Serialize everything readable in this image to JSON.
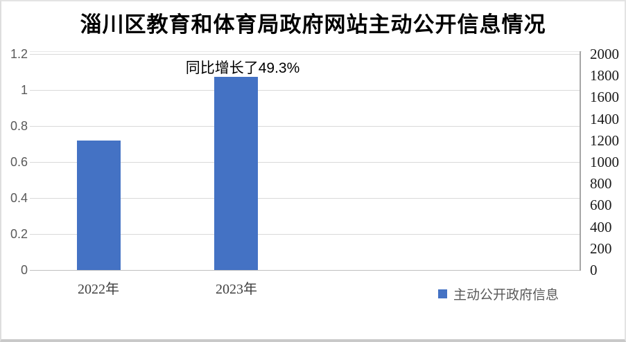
{
  "chart_data": {
    "type": "bar",
    "title": "淄川区教育和体育局政府网站主动公开信息情况",
    "annotation": "同比增长了49.3%",
    "categories": [
      "2022年",
      "2023年"
    ],
    "series": [
      {
        "name": "主动公开政府信息",
        "values": [
          1200,
          1790
        ],
        "axis": "right"
      }
    ],
    "values_left_scale": [
      0.72,
      1.075
    ],
    "left_axis": {
      "min": 0,
      "max": 1.2,
      "step": 0.2,
      "ticks": [
        "1.2",
        "1",
        "0.8",
        "0.6",
        "0.4",
        "0.2",
        "0"
      ]
    },
    "right_axis": {
      "min": 0,
      "max": 2000,
      "step": 200,
      "ticks": [
        "2000",
        "1800",
        "1600",
        "1400",
        "1200",
        "1000",
        "800",
        "600",
        "400",
        "200",
        "0"
      ]
    },
    "grid": true,
    "legend_position": "bottom-right",
    "layout_hints": {
      "category_slots": 4
    },
    "colors": {
      "bar": "#4472C4",
      "gridline": "#d9d9d9",
      "baseline": "#bfbfbf",
      "axis_line": "#a6a6a6",
      "left_tick_text": "#595959",
      "right_tick_text": "#1a1a1a",
      "x_label_text": "#3f3f3f",
      "legend_text": "#595959",
      "title_text": "#000000",
      "annotation_text": "#000000"
    }
  }
}
